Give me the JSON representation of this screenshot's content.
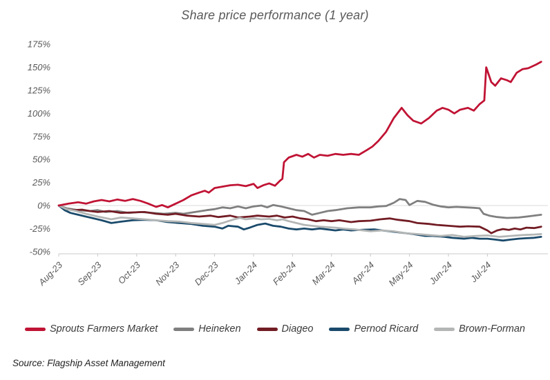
{
  "page": {
    "title": "Share price performance (1 year)",
    "source": "Source: Flagship Asset Management"
  },
  "colors": {
    "background": "#FFFFFF",
    "title_text": "#595959",
    "axis_text": "#595959",
    "legend_text": "#3A3A3A",
    "source_text": "#1F1F1F",
    "gridline": "#D9D9D9",
    "axis_line": "#C8C8C8",
    "sprouts": "#C01334",
    "heineken": "#7F7F7F",
    "diageo": "#721C24",
    "pernod_ricard": "#1A4A6B",
    "brown_forman": "#B3B6B5"
  },
  "chart_data": {
    "type": "line",
    "title": "Share price performance (1 year)",
    "xlabel": "",
    "ylabel": "",
    "x_unit": "months since Aug-23",
    "xlim": [
      0,
      12.4
    ],
    "ylim": [
      -50,
      175
    ],
    "grid": "horizontal gridline at 0% only",
    "legend_position": "bottom",
    "y_ticks": [
      {
        "value": 175,
        "label": "175%"
      },
      {
        "value": 150,
        "label": "150%"
      },
      {
        "value": 125,
        "label": "125%"
      },
      {
        "value": 100,
        "label": "100%"
      },
      {
        "value": 75,
        "label": "75%"
      },
      {
        "value": 50,
        "label": "50%"
      },
      {
        "value": 25,
        "label": "25%"
      },
      {
        "value": 0,
        "label": "0%"
      },
      {
        "value": -25,
        "label": "-25%"
      },
      {
        "value": -50,
        "label": "-50%"
      }
    ],
    "x_ticks": [
      {
        "value": 0,
        "label": "Aug-23"
      },
      {
        "value": 1,
        "label": "Sep-23"
      },
      {
        "value": 2,
        "label": "Oct-23"
      },
      {
        "value": 3,
        "label": "Nov-23"
      },
      {
        "value": 4,
        "label": "Dec-23"
      },
      {
        "value": 5,
        "label": "Jan-24"
      },
      {
        "value": 6,
        "label": "Feb-24"
      },
      {
        "value": 7,
        "label": "Mar-24"
      },
      {
        "value": 8,
        "label": "Apr-24"
      },
      {
        "value": 9,
        "label": "May-24"
      },
      {
        "value": 10,
        "label": "Jun-24"
      },
      {
        "value": 11,
        "label": "Jul-24"
      }
    ],
    "series": [
      {
        "name": "Sprouts Farmers Market",
        "color": "#C01334",
        "points": [
          [
            0,
            0
          ],
          [
            0.25,
            2
          ],
          [
            0.5,
            3.5
          ],
          [
            0.7,
            2
          ],
          [
            0.9,
            4.5
          ],
          [
            1.1,
            6
          ],
          [
            1.3,
            4.5
          ],
          [
            1.5,
            6.5
          ],
          [
            1.7,
            5
          ],
          [
            1.9,
            7
          ],
          [
            2.1,
            5
          ],
          [
            2.3,
            2
          ],
          [
            2.5,
            -1.5
          ],
          [
            2.65,
            0.5
          ],
          [
            2.8,
            -2
          ],
          [
            3,
            2
          ],
          [
            3.2,
            6
          ],
          [
            3.4,
            11
          ],
          [
            3.6,
            14
          ],
          [
            3.75,
            16
          ],
          [
            3.85,
            14
          ],
          [
            4,
            19
          ],
          [
            4.2,
            20.5
          ],
          [
            4.4,
            22
          ],
          [
            4.6,
            22.5
          ],
          [
            4.8,
            21
          ],
          [
            5,
            23.5
          ],
          [
            5.1,
            19
          ],
          [
            5.25,
            22
          ],
          [
            5.4,
            24
          ],
          [
            5.55,
            21.5
          ],
          [
            5.68,
            27
          ],
          [
            5.74,
            29
          ],
          [
            5.78,
            47
          ],
          [
            5.9,
            52
          ],
          [
            6.1,
            55
          ],
          [
            6.25,
            53
          ],
          [
            6.4,
            56
          ],
          [
            6.55,
            52
          ],
          [
            6.7,
            55
          ],
          [
            6.9,
            54
          ],
          [
            7.1,
            56
          ],
          [
            7.3,
            55
          ],
          [
            7.5,
            56
          ],
          [
            7.7,
            55
          ],
          [
            7.9,
            60
          ],
          [
            8.05,
            64
          ],
          [
            8.2,
            70
          ],
          [
            8.4,
            80
          ],
          [
            8.6,
            95
          ],
          [
            8.8,
            106
          ],
          [
            8.95,
            98
          ],
          [
            9.1,
            92
          ],
          [
            9.3,
            89
          ],
          [
            9.5,
            95
          ],
          [
            9.7,
            103
          ],
          [
            9.85,
            106
          ],
          [
            10,
            104
          ],
          [
            10.15,
            100
          ],
          [
            10.3,
            104
          ],
          [
            10.5,
            106
          ],
          [
            10.65,
            103
          ],
          [
            10.8,
            110
          ],
          [
            10.92,
            114
          ],
          [
            10.97,
            150
          ],
          [
            11.1,
            134
          ],
          [
            11.2,
            130
          ],
          [
            11.35,
            138
          ],
          [
            11.5,
            136
          ],
          [
            11.6,
            134
          ],
          [
            11.75,
            144
          ],
          [
            11.9,
            148
          ],
          [
            12.05,
            149
          ],
          [
            12.25,
            153
          ],
          [
            12.38,
            156
          ]
        ]
      },
      {
        "name": "Heineken",
        "color": "#7F7F7F",
        "points": [
          [
            0,
            0
          ],
          [
            0.2,
            -3
          ],
          [
            0.5,
            -5
          ],
          [
            0.8,
            -6
          ],
          [
            1,
            -5
          ],
          [
            1.2,
            -7
          ],
          [
            1.5,
            -6
          ],
          [
            1.8,
            -8
          ],
          [
            2.1,
            -7
          ],
          [
            2.4,
            -8
          ],
          [
            2.7,
            -9
          ],
          [
            3,
            -8
          ],
          [
            3.2,
            -9
          ],
          [
            3.5,
            -7
          ],
          [
            3.8,
            -5
          ],
          [
            4,
            -4
          ],
          [
            4.2,
            -2
          ],
          [
            4.4,
            -3
          ],
          [
            4.6,
            -1
          ],
          [
            4.8,
            -3
          ],
          [
            5,
            -1
          ],
          [
            5.2,
            0
          ],
          [
            5.35,
            -2
          ],
          [
            5.5,
            0.5
          ],
          [
            5.7,
            -1
          ],
          [
            5.9,
            -3
          ],
          [
            6.1,
            -5
          ],
          [
            6.3,
            -6
          ],
          [
            6.5,
            -10
          ],
          [
            6.7,
            -8
          ],
          [
            6.9,
            -6
          ],
          [
            7.1,
            -5
          ],
          [
            7.4,
            -3
          ],
          [
            7.7,
            -2
          ],
          [
            8,
            -2
          ],
          [
            8.2,
            -1
          ],
          [
            8.4,
            -0.5
          ],
          [
            8.6,
            3
          ],
          [
            8.75,
            7
          ],
          [
            8.9,
            6
          ],
          [
            9,
            0.5
          ],
          [
            9.2,
            5
          ],
          [
            9.4,
            4
          ],
          [
            9.6,
            1
          ],
          [
            9.8,
            -1
          ],
          [
            10,
            -2
          ],
          [
            10.2,
            -1.5
          ],
          [
            10.45,
            -2
          ],
          [
            10.65,
            -2.5
          ],
          [
            10.8,
            -3
          ],
          [
            10.9,
            -9
          ],
          [
            11.05,
            -11
          ],
          [
            11.25,
            -12.5
          ],
          [
            11.5,
            -13.5
          ],
          [
            11.8,
            -13
          ],
          [
            12.1,
            -11.5
          ],
          [
            12.38,
            -10
          ]
        ]
      },
      {
        "name": "Diageo",
        "color": "#721C24",
        "points": [
          [
            0,
            0
          ],
          [
            0.2,
            -4
          ],
          [
            0.4,
            -5
          ],
          [
            0.6,
            -4.5
          ],
          [
            0.8,
            -6
          ],
          [
            1,
            -7
          ],
          [
            1.3,
            -6
          ],
          [
            1.6,
            -8
          ],
          [
            1.9,
            -7.5
          ],
          [
            2.2,
            -7
          ],
          [
            2.5,
            -9
          ],
          [
            2.8,
            -10
          ],
          [
            3,
            -9
          ],
          [
            3.3,
            -11
          ],
          [
            3.6,
            -12
          ],
          [
            3.9,
            -11
          ],
          [
            4.1,
            -12.5
          ],
          [
            4.4,
            -11
          ],
          [
            4.6,
            -13
          ],
          [
            4.9,
            -12
          ],
          [
            5.1,
            -11
          ],
          [
            5.4,
            -12
          ],
          [
            5.6,
            -11
          ],
          [
            5.8,
            -13
          ],
          [
            6,
            -12
          ],
          [
            6.2,
            -14
          ],
          [
            6.4,
            -15
          ],
          [
            6.6,
            -17
          ],
          [
            6.8,
            -16
          ],
          [
            7,
            -17
          ],
          [
            7.2,
            -16
          ],
          [
            7.5,
            -18
          ],
          [
            7.7,
            -17
          ],
          [
            8,
            -16.5
          ],
          [
            8.25,
            -15
          ],
          [
            8.5,
            -14
          ],
          [
            8.7,
            -15.5
          ],
          [
            9,
            -17
          ],
          [
            9.2,
            -19
          ],
          [
            9.5,
            -20
          ],
          [
            9.7,
            -21
          ],
          [
            10,
            -22
          ],
          [
            10.3,
            -23
          ],
          [
            10.5,
            -22.5
          ],
          [
            10.8,
            -23
          ],
          [
            11,
            -27
          ],
          [
            11.1,
            -30
          ],
          [
            11.25,
            -27
          ],
          [
            11.4,
            -25.5
          ],
          [
            11.55,
            -26.5
          ],
          [
            11.7,
            -25
          ],
          [
            11.85,
            -26
          ],
          [
            12,
            -24
          ],
          [
            12.2,
            -24.5
          ],
          [
            12.38,
            -23
          ]
        ]
      },
      {
        "name": "Pernod Ricard",
        "color": "#1A4A6B",
        "points": [
          [
            0,
            0
          ],
          [
            0.15,
            -5
          ],
          [
            0.3,
            -8
          ],
          [
            0.5,
            -10
          ],
          [
            0.8,
            -13
          ],
          [
            1.1,
            -16
          ],
          [
            1.35,
            -19
          ],
          [
            1.6,
            -17.5
          ],
          [
            1.9,
            -16
          ],
          [
            2.2,
            -15.5
          ],
          [
            2.5,
            -16
          ],
          [
            2.8,
            -18
          ],
          [
            3.1,
            -19
          ],
          [
            3.4,
            -20
          ],
          [
            3.7,
            -22
          ],
          [
            4,
            -23
          ],
          [
            4.2,
            -25
          ],
          [
            4.35,
            -22
          ],
          [
            4.6,
            -23
          ],
          [
            4.75,
            -26
          ],
          [
            4.9,
            -24
          ],
          [
            5.1,
            -21
          ],
          [
            5.3,
            -19.5
          ],
          [
            5.5,
            -22
          ],
          [
            5.7,
            -23
          ],
          [
            5.9,
            -25
          ],
          [
            6.1,
            -26
          ],
          [
            6.3,
            -25
          ],
          [
            6.5,
            -26
          ],
          [
            6.7,
            -25
          ],
          [
            6.9,
            -26
          ],
          [
            7.1,
            -27
          ],
          [
            7.3,
            -26
          ],
          [
            7.5,
            -27
          ],
          [
            7.7,
            -26.5
          ],
          [
            8.1,
            -26
          ],
          [
            8.3,
            -27
          ],
          [
            8.5,
            -28
          ],
          [
            8.7,
            -29
          ],
          [
            8.9,
            -30
          ],
          [
            9.1,
            -31
          ],
          [
            9.4,
            -33
          ],
          [
            9.6,
            -33
          ],
          [
            9.9,
            -34
          ],
          [
            10.1,
            -35
          ],
          [
            10.4,
            -36
          ],
          [
            10.6,
            -35
          ],
          [
            10.8,
            -36
          ],
          [
            11,
            -36
          ],
          [
            11.2,
            -37
          ],
          [
            11.4,
            -38
          ],
          [
            11.6,
            -37
          ],
          [
            11.8,
            -36
          ],
          [
            12,
            -35.5
          ],
          [
            12.2,
            -35
          ],
          [
            12.38,
            -34
          ]
        ]
      },
      {
        "name": "Brown-Forman",
        "color": "#B3B6B5",
        "points": [
          [
            0,
            0
          ],
          [
            0.2,
            -4
          ],
          [
            0.45,
            -6
          ],
          [
            0.7,
            -9
          ],
          [
            1,
            -12
          ],
          [
            1.35,
            -15
          ],
          [
            1.6,
            -13
          ],
          [
            1.9,
            -14
          ],
          [
            2.2,
            -15
          ],
          [
            2.5,
            -16
          ],
          [
            2.8,
            -17
          ],
          [
            3.1,
            -17.5
          ],
          [
            3.4,
            -19
          ],
          [
            3.7,
            -20
          ],
          [
            4,
            -21
          ],
          [
            4.2,
            -19
          ],
          [
            4.35,
            -17
          ],
          [
            4.5,
            -15
          ],
          [
            4.65,
            -13.5
          ],
          [
            4.8,
            -15
          ],
          [
            5,
            -14
          ],
          [
            5.2,
            -15
          ],
          [
            5.4,
            -14.5
          ],
          [
            5.6,
            -16
          ],
          [
            5.75,
            -15
          ],
          [
            5.9,
            -17
          ],
          [
            6.1,
            -19
          ],
          [
            6.3,
            -21
          ],
          [
            6.5,
            -22
          ],
          [
            6.7,
            -23
          ],
          [
            6.9,
            -23.5
          ],
          [
            7.1,
            -24
          ],
          [
            7.3,
            -25
          ],
          [
            7.6,
            -26
          ],
          [
            8,
            -28
          ],
          [
            8.3,
            -27
          ],
          [
            8.6,
            -28
          ],
          [
            8.9,
            -30
          ],
          [
            9.2,
            -31
          ],
          [
            9.5,
            -32
          ],
          [
            9.8,
            -33
          ],
          [
            10.1,
            -32
          ],
          [
            10.4,
            -34
          ],
          [
            10.7,
            -33
          ],
          [
            11,
            -32.5
          ],
          [
            11.3,
            -34
          ],
          [
            11.6,
            -33
          ],
          [
            11.9,
            -32
          ],
          [
            12.2,
            -31.5
          ],
          [
            12.38,
            -31
          ]
        ]
      }
    ]
  }
}
